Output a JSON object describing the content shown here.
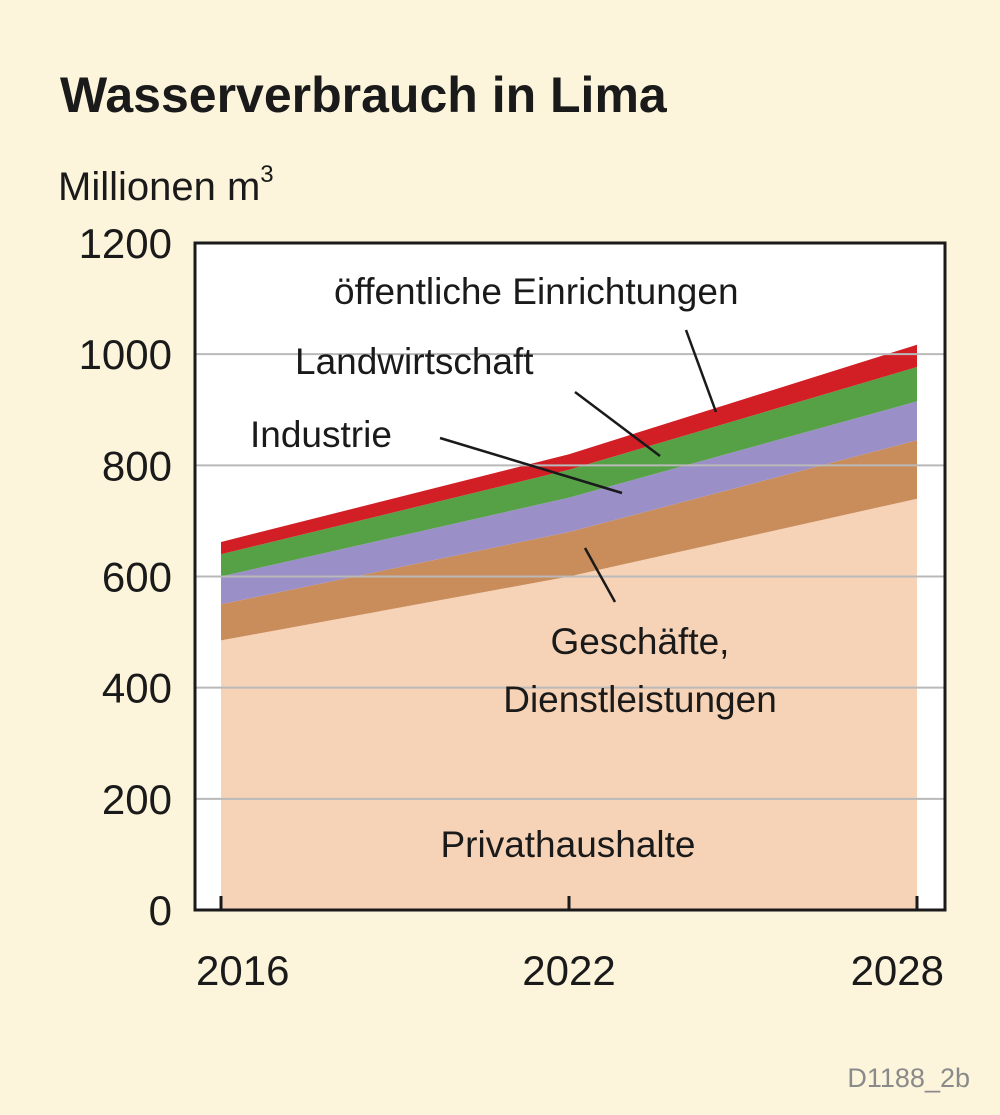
{
  "chart_data": {
    "type": "area",
    "stacked": true,
    "title": "Wasserverbrauch in Lima",
    "ylabel": "Millionen m",
    "ylabel_sup": "3",
    "x": [
      2016,
      2022,
      2028
    ],
    "x_ticks": [
      "2016",
      "2022",
      "2028"
    ],
    "ylim": [
      0,
      1200
    ],
    "y_ticks": [
      "0",
      "200",
      "400",
      "600",
      "800",
      "1000",
      "1200"
    ],
    "grid": true,
    "series": [
      {
        "name": "Privathaushalte",
        "values": [
          485,
          600,
          740
        ],
        "color": "#f6d3b6"
      },
      {
        "name": "Geschäfte,\nDienstleistungen",
        "values": [
          65,
          80,
          105
        ],
        "color": "#c98c5b"
      },
      {
        "name": "Industrie",
        "values": [
          50,
          62,
          70
        ],
        "color": "#9b8fc7"
      },
      {
        "name": "Landwirtschaft",
        "values": [
          40,
          50,
          62
        ],
        "color": "#56a046"
      },
      {
        "name": "öffentliche Einrichtungen",
        "values": [
          22,
          28,
          40
        ],
        "color": "#d21f26"
      }
    ],
    "source_code": "D1188_2b"
  }
}
